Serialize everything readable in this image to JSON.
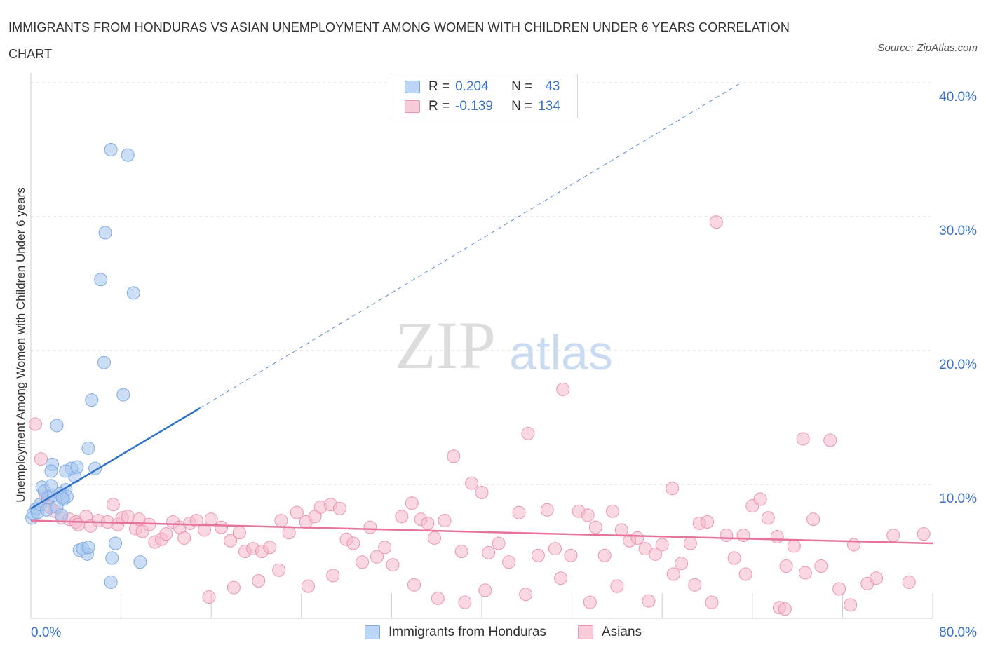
{
  "title": "IMMIGRANTS FROM HONDURAS VS ASIAN UNEMPLOYMENT AMONG WOMEN WITH CHILDREN UNDER 6 YEARS CORRELATION CHART",
  "source": "Source: ZipAtlas.com",
  "watermark": {
    "zip": "ZIP",
    "atlas": "atlas"
  },
  "legend_top": {
    "rows": [
      {
        "r_label": "R =",
        "r_value": "0.204",
        "n_label": "N =",
        "n_value": "43"
      },
      {
        "r_label": "R =",
        "r_value": "-0.139",
        "n_label": "N =",
        "n_value": "134"
      }
    ]
  },
  "colors": {
    "blue_fill": "#a9c8f0",
    "blue_stroke": "#7fa9df",
    "blue_line": "#2f72c8",
    "pink_fill": "#f5b8cb",
    "pink_stroke": "#e995b1",
    "pink_line": "#e8739a",
    "axis_label": "#3a72c9",
    "grid": "#d9d9d9"
  },
  "chart_data": {
    "type": "scatter",
    "title": "IMMIGRANTS FROM HONDURAS VS ASIAN UNEMPLOYMENT AMONG WOMEN WITH CHILDREN UNDER 6 YEARS CORRELATION CHART",
    "xlabel": "",
    "ylabel": "Unemployment Among Women with Children Under 6 years",
    "xlim": [
      0,
      80
    ],
    "ylim": [
      0,
      40
    ],
    "x_tick_labels": [
      "0.0%",
      "80.0%"
    ],
    "y_ticks": [
      10,
      20,
      30,
      40
    ],
    "y_tick_labels": [
      "10.0%",
      "20.0%",
      "30.0%",
      "40.0%"
    ],
    "grid": true,
    "legend_position": "top-center",
    "series": [
      {
        "name": "Immigrants from Honduras",
        "R": 0.204,
        "N": 43,
        "trend": {
          "x": [
            0,
            15
          ],
          "y": [
            8.2,
            15.7
          ],
          "dashed_to": {
            "x": 63,
            "y": 40
          }
        },
        "points": [
          [
            0.1,
            7.5
          ],
          [
            0.2,
            7.8
          ],
          [
            0.5,
            8.2
          ],
          [
            0.6,
            7.9
          ],
          [
            0.8,
            8.5
          ],
          [
            1.0,
            9.8
          ],
          [
            1.2,
            9.5
          ],
          [
            1.5,
            9.0
          ],
          [
            1.8,
            9.9
          ],
          [
            2.0,
            9.2
          ],
          [
            1.9,
            11.5
          ],
          [
            1.8,
            11.0
          ],
          [
            3.1,
            9.6
          ],
          [
            2.6,
            9.3
          ],
          [
            2.9,
            8.9
          ],
          [
            3.2,
            9.1
          ],
          [
            2.8,
            9.0
          ],
          [
            1.4,
            8.1
          ],
          [
            3.9,
            10.6
          ],
          [
            2.3,
            8.3
          ],
          [
            2.7,
            7.7
          ],
          [
            3.6,
            11.2
          ],
          [
            4.1,
            11.3
          ],
          [
            2.3,
            14.4
          ],
          [
            3.1,
            11.0
          ],
          [
            5.7,
            11.2
          ],
          [
            5.1,
            12.7
          ],
          [
            5.4,
            16.3
          ],
          [
            6.5,
            19.1
          ],
          [
            8.2,
            16.7
          ],
          [
            6.2,
            25.3
          ],
          [
            9.1,
            24.3
          ],
          [
            6.6,
            28.8
          ],
          [
            7.1,
            35.0
          ],
          [
            8.6,
            34.6
          ],
          [
            5.0,
            4.8
          ],
          [
            4.3,
            5.1
          ],
          [
            4.6,
            5.2
          ],
          [
            5.1,
            5.3
          ],
          [
            7.5,
            5.6
          ],
          [
            7.2,
            4.5
          ],
          [
            9.7,
            4.2
          ],
          [
            7.1,
            2.7
          ]
        ]
      },
      {
        "name": "Asians",
        "R": -0.139,
        "N": 134,
        "trend": {
          "x": [
            0,
            80
          ],
          "y": [
            7.3,
            5.6
          ]
        },
        "points": [
          [
            0.4,
            14.5
          ],
          [
            0.9,
            11.9
          ],
          [
            1.3,
            9.1
          ],
          [
            1.5,
            8.8
          ],
          [
            1.7,
            8.3
          ],
          [
            2.1,
            8.0
          ],
          [
            2.7,
            7.5
          ],
          [
            3.4,
            7.4
          ],
          [
            4.0,
            7.2
          ],
          [
            4.2,
            7.0
          ],
          [
            4.9,
            7.6
          ],
          [
            5.3,
            6.9
          ],
          [
            6.0,
            7.3
          ],
          [
            6.8,
            7.2
          ],
          [
            7.3,
            8.5
          ],
          [
            7.7,
            7.0
          ],
          [
            8.1,
            7.5
          ],
          [
            8.6,
            7.6
          ],
          [
            9.3,
            6.7
          ],
          [
            9.6,
            7.4
          ],
          [
            9.9,
            6.5
          ],
          [
            10.5,
            7.0
          ],
          [
            11.0,
            5.7
          ],
          [
            11.6,
            5.9
          ],
          [
            12.0,
            6.3
          ],
          [
            12.6,
            7.2
          ],
          [
            13.2,
            6.8
          ],
          [
            13.6,
            6.0
          ],
          [
            14.1,
            7.1
          ],
          [
            14.7,
            7.3
          ],
          [
            15.4,
            6.6
          ],
          [
            16.0,
            7.4
          ],
          [
            16.9,
            6.8
          ],
          [
            17.7,
            5.8
          ],
          [
            18.5,
            6.4
          ],
          [
            19.0,
            5.0
          ],
          [
            19.7,
            5.2
          ],
          [
            20.5,
            5.0
          ],
          [
            21.2,
            5.3
          ],
          [
            22.2,
            7.3
          ],
          [
            22.9,
            6.4
          ],
          [
            23.6,
            7.9
          ],
          [
            24.4,
            7.2
          ],
          [
            25.2,
            7.6
          ],
          [
            25.7,
            8.3
          ],
          [
            26.6,
            8.5
          ],
          [
            27.4,
            8.2
          ],
          [
            28.0,
            5.9
          ],
          [
            28.6,
            5.6
          ],
          [
            29.4,
            4.2
          ],
          [
            30.1,
            6.8
          ],
          [
            30.7,
            4.6
          ],
          [
            31.4,
            5.3
          ],
          [
            32.1,
            4.0
          ],
          [
            32.9,
            7.6
          ],
          [
            33.8,
            8.6
          ],
          [
            34.6,
            7.4
          ],
          [
            35.2,
            7.1
          ],
          [
            35.8,
            6.0
          ],
          [
            36.7,
            7.3
          ],
          [
            37.5,
            12.1
          ],
          [
            38.2,
            5.0
          ],
          [
            39.1,
            10.1
          ],
          [
            40.0,
            9.4
          ],
          [
            40.6,
            4.9
          ],
          [
            41.5,
            5.6
          ],
          [
            42.4,
            4.2
          ],
          [
            43.3,
            7.9
          ],
          [
            44.1,
            13.8
          ],
          [
            45.0,
            4.7
          ],
          [
            45.8,
            8.1
          ],
          [
            46.5,
            5.2
          ],
          [
            47.2,
            17.1
          ],
          [
            47.9,
            4.7
          ],
          [
            48.6,
            8.0
          ],
          [
            49.4,
            7.7
          ],
          [
            50.1,
            6.8
          ],
          [
            50.9,
            4.7
          ],
          [
            51.6,
            8.0
          ],
          [
            52.4,
            6.6
          ],
          [
            53.1,
            5.8
          ],
          [
            53.8,
            6.0
          ],
          [
            54.5,
            5.2
          ],
          [
            55.4,
            4.8
          ],
          [
            56.0,
            5.5
          ],
          [
            56.9,
            9.7
          ],
          [
            57.7,
            4.1
          ],
          [
            58.5,
            5.6
          ],
          [
            59.3,
            7.1
          ],
          [
            60.0,
            7.2
          ],
          [
            60.8,
            29.6
          ],
          [
            61.7,
            6.2
          ],
          [
            62.4,
            4.5
          ],
          [
            63.2,
            6.2
          ],
          [
            64.0,
            8.4
          ],
          [
            64.7,
            8.9
          ],
          [
            65.4,
            7.5
          ],
          [
            66.2,
            6.1
          ],
          [
            67.0,
            3.9
          ],
          [
            67.7,
            5.4
          ],
          [
            68.5,
            13.4
          ],
          [
            69.4,
            7.4
          ],
          [
            70.1,
            3.9
          ],
          [
            70.9,
            13.3
          ],
          [
            71.7,
            2.2
          ],
          [
            73.0,
            5.5
          ],
          [
            74.2,
            2.6
          ],
          [
            75.0,
            3.0
          ],
          [
            76.5,
            6.2
          ],
          [
            77.9,
            2.7
          ],
          [
            79.2,
            6.3
          ],
          [
            15.8,
            1.6
          ],
          [
            18.0,
            2.3
          ],
          [
            20.2,
            2.8
          ],
          [
            22.0,
            3.6
          ],
          [
            24.6,
            2.4
          ],
          [
            26.8,
            3.2
          ],
          [
            34.0,
            2.5
          ],
          [
            36.1,
            1.5
          ],
          [
            38.5,
            1.2
          ],
          [
            40.3,
            2.1
          ],
          [
            43.9,
            1.8
          ],
          [
            47.0,
            3.0
          ],
          [
            49.6,
            1.2
          ],
          [
            52.0,
            2.4
          ],
          [
            54.8,
            1.3
          ],
          [
            57.0,
            3.3
          ],
          [
            58.9,
            2.5
          ],
          [
            60.4,
            1.2
          ],
          [
            63.4,
            3.3
          ],
          [
            66.4,
            0.8
          ],
          [
            66.9,
            0.7
          ],
          [
            68.7,
            3.4
          ],
          [
            72.7,
            1.0
          ]
        ]
      }
    ]
  },
  "legend_bottom": [
    {
      "label": "Immigrants from Honduras"
    },
    {
      "label": "Asians"
    }
  ]
}
